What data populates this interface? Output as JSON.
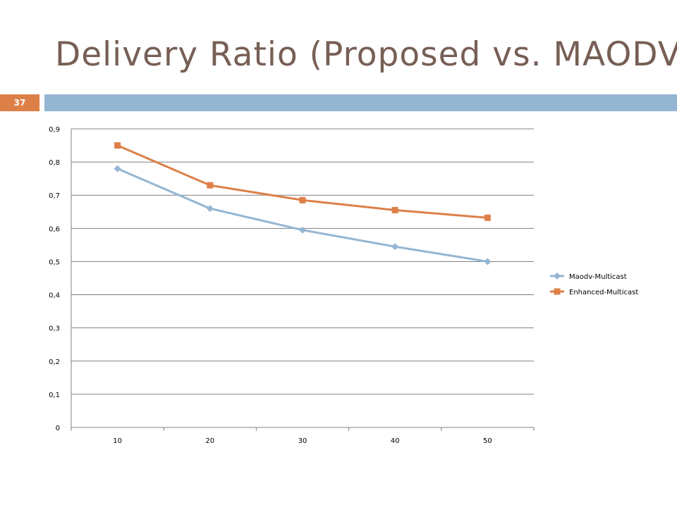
{
  "slide": {
    "title": "Delivery Ratio (Proposed vs. MAODV)",
    "page_number": "37",
    "accent_color": "#dd8047",
    "rule_color": "#94b6d2",
    "title_color": "#775f55"
  },
  "chart_data": {
    "type": "line",
    "categories": [
      "10",
      "20",
      "30",
      "40",
      "50"
    ],
    "series": [
      {
        "name": "Maodv-Multicast",
        "values": [
          0.78,
          0.66,
          0.595,
          0.545,
          0.5
        ],
        "color": "#94b6d2",
        "marker": "diamond"
      },
      {
        "name": "Enhanced-Multicast",
        "values": [
          0.85,
          0.73,
          0.685,
          0.655,
          0.632
        ],
        "color": "#dd8047",
        "marker": "square"
      }
    ],
    "ylim": [
      0,
      0.9
    ],
    "yticks": [
      "0",
      "0,1",
      "0,2",
      "0,3",
      "0,4",
      "0,5",
      "0,6",
      "0,7",
      "0,8",
      "0,9"
    ],
    "grid": true,
    "legend": "right"
  }
}
